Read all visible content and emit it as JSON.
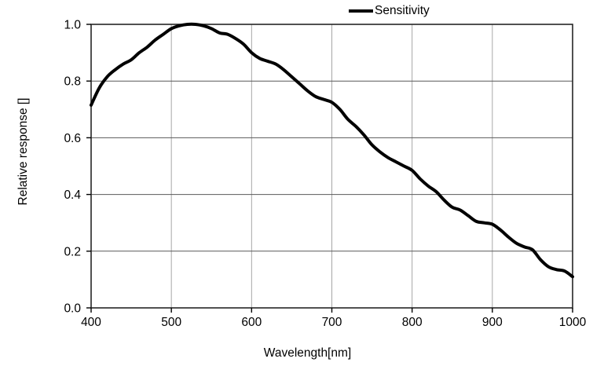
{
  "colors": {
    "background": "#ffffff",
    "plot_border": "#262626",
    "h_grid": "#595959",
    "v_grid": "#a6a6a6",
    "tick": "#000000",
    "text": "#000000"
  },
  "chart_data": {
    "type": "line",
    "title": "",
    "xlabel": "Wavelength[nm]",
    "ylabel": "Relative response []",
    "xlim": [
      400,
      1000
    ],
    "ylim": [
      0.0,
      1.0
    ],
    "x_ticks": [
      400,
      500,
      600,
      700,
      800,
      900,
      1000
    ],
    "x_tick_labels": [
      "400",
      "500",
      "600",
      "700",
      "800",
      "900",
      "1000"
    ],
    "y_ticks": [
      0.0,
      0.2,
      0.4,
      0.6,
      0.8,
      1.0
    ],
    "y_tick_labels": [
      "0.0",
      "0.2",
      "0.4",
      "0.6",
      "0.8",
      "1.0"
    ],
    "grid": {
      "horizontal": true,
      "vertical": true
    },
    "legend_position": "top-center",
    "series": [
      {
        "name": "Sensitivity",
        "color": "#000000",
        "x": [
          400,
          410,
          420,
          430,
          440,
          450,
          460,
          470,
          480,
          490,
          500,
          510,
          520,
          530,
          540,
          550,
          560,
          570,
          580,
          590,
          600,
          610,
          620,
          630,
          640,
          650,
          660,
          670,
          680,
          690,
          700,
          710,
          720,
          730,
          740,
          750,
          760,
          770,
          780,
          790,
          800,
          810,
          820,
          830,
          840,
          850,
          860,
          870,
          880,
          890,
          900,
          910,
          920,
          930,
          940,
          950,
          960,
          970,
          980,
          990,
          1000
        ],
        "y": [
          0.715,
          0.775,
          0.815,
          0.84,
          0.86,
          0.875,
          0.9,
          0.92,
          0.945,
          0.965,
          0.985,
          0.995,
          1.0,
          1.0,
          0.995,
          0.985,
          0.97,
          0.965,
          0.95,
          0.93,
          0.9,
          0.88,
          0.87,
          0.86,
          0.84,
          0.815,
          0.79,
          0.765,
          0.745,
          0.735,
          0.725,
          0.7,
          0.665,
          0.64,
          0.61,
          0.575,
          0.55,
          0.53,
          0.515,
          0.5,
          0.485,
          0.455,
          0.43,
          0.41,
          0.38,
          0.355,
          0.345,
          0.325,
          0.305,
          0.3,
          0.295,
          0.275,
          0.25,
          0.228,
          0.215,
          0.205,
          0.17,
          0.145,
          0.135,
          0.13,
          0.11
        ]
      }
    ]
  }
}
